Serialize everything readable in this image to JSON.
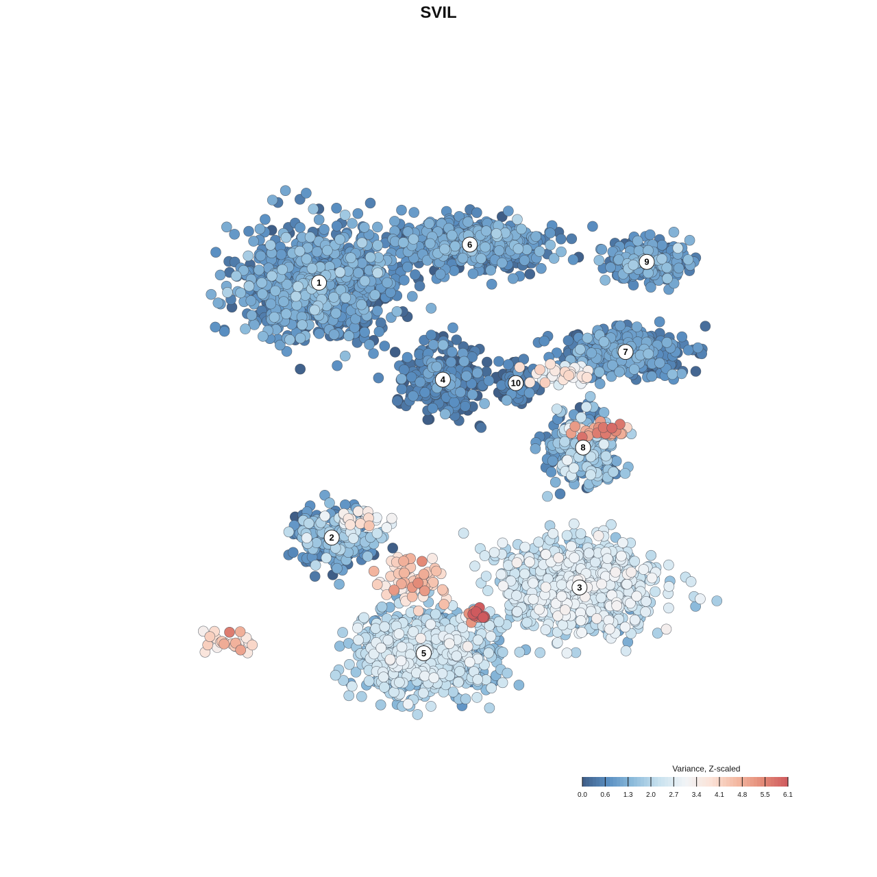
{
  "chart_data": {
    "type": "scatter",
    "title": "SVIL",
    "xlabel": "",
    "ylabel": "",
    "grid": false,
    "xlim": [
      -45,
      45
    ],
    "ylim": [
      -45,
      45
    ],
    "legend": {
      "title": "Variance, Z-scaled",
      "placement": "bottom-right",
      "ticks": [
        "0.0",
        "0.6",
        "1.3",
        "2.0",
        "2.7",
        "3.4",
        "4.1",
        "4.8",
        "5.5",
        "6.1"
      ],
      "range": [
        0.0,
        6.1
      ],
      "colors": [
        "#3f5e87",
        "#5a8fc2",
        "#8fbddc",
        "#c9e2ef",
        "#f1f4f7",
        "#fbe3d8",
        "#f4b9a2",
        "#e38a77",
        "#cf5a5e"
      ]
    },
    "clusters": [
      {
        "label": "1",
        "x": -19.3,
        "y": 22.0,
        "spread": [
          9.8,
          7.5
        ],
        "n": 900,
        "value": 0.8,
        "vsd": 0.45
      },
      {
        "label": "6",
        "x": 2.0,
        "y": 27.5,
        "spread": [
          10.0,
          3.4
        ],
        "n": 520,
        "value": 0.8,
        "vsd": 0.4
      },
      {
        "label": "4",
        "x": -1.8,
        "y": 8.0,
        "spread": [
          5.0,
          4.8
        ],
        "n": 330,
        "value": 0.35,
        "vsd": 0.4
      },
      {
        "label": "10",
        "x": 8.5,
        "y": 7.5,
        "spread": [
          2.4,
          2.6
        ],
        "n": 80,
        "value": 0.25,
        "vsd": 0.4
      },
      {
        "label": "9",
        "x": 27.0,
        "y": 25.0,
        "spread": [
          5.5,
          2.6
        ],
        "n": 230,
        "value": 0.8,
        "vsd": 0.4
      },
      {
        "label": "7",
        "x": 24.0,
        "y": 12.0,
        "spread": [
          8.0,
          3.0
        ],
        "n": 330,
        "value": 0.7,
        "vsd": 0.4
      },
      {
        "label": "8",
        "x": 18.0,
        "y": -1.8,
        "spread": [
          4.5,
          4.5
        ],
        "n": 280,
        "value": 1.3,
        "vsd": 0.6
      },
      {
        "label": "2",
        "x": -17.5,
        "y": -14.8,
        "spread": [
          5.0,
          3.6
        ],
        "n": 250,
        "value": 1.0,
        "vsd": 0.7
      },
      {
        "label": "3",
        "x": 17.5,
        "y": -22.0,
        "spread": [
          10.0,
          5.8
        ],
        "n": 900,
        "value": 2.25,
        "vsd": 0.45
      },
      {
        "label": "5",
        "x": -4.5,
        "y": -31.5,
        "spread": [
          8.2,
          5.5
        ],
        "n": 900,
        "value": 1.9,
        "vsd": 0.45
      }
    ],
    "hotspots": [
      {
        "x": 3.0,
        "y": -26.0,
        "spread": [
          1.5,
          0.9
        ],
        "n": 18,
        "value": 5.8
      },
      {
        "x": 21.0,
        "y": 0.5,
        "spread": [
          3.5,
          1.0
        ],
        "n": 28,
        "value": 5.1
      },
      {
        "x": -6.5,
        "y": -21.0,
        "spread": [
          5.0,
          3.5
        ],
        "n": 60,
        "value": 4.2
      },
      {
        "x": 15.5,
        "y": 8.8,
        "spread": [
          4.5,
          1.2
        ],
        "n": 40,
        "value": 3.2
      },
      {
        "x": -31.5,
        "y": -30.0,
        "spread": [
          4.0,
          1.5
        ],
        "n": 25,
        "value": 3.9
      },
      {
        "x": -14.0,
        "y": -12.2,
        "spread": [
          4.0,
          1.3
        ],
        "n": 30,
        "value": 3.3
      }
    ]
  }
}
